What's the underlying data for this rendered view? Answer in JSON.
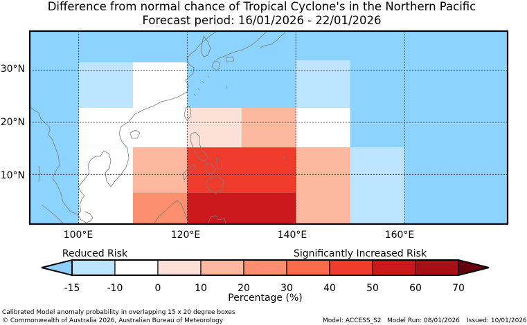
{
  "titles": {
    "line1": "Difference from normal chance of Tropical Cyclone's in the Northern Pacific",
    "line2": "Forecast period: 16/01/2026 - 22/01/2026"
  },
  "axes": {
    "lat_labels": [
      "30°N",
      "20°N",
      "10°N"
    ],
    "lon_labels": [
      "100°E",
      "120°E",
      "140°E",
      "160°E"
    ]
  },
  "map_data": {
    "lon_range": [
      91,
      179
    ],
    "lat_range": [
      0.5,
      37.5
    ],
    "gridlines_lon": [
      100,
      120,
      140,
      160
    ],
    "gridlines_lat": [
      10,
      20,
      30
    ],
    "cells": [
      {
        "lon": [
          100,
          110
        ],
        "lat": [
          22.8,
          31.5
        ],
        "color": "#BEE5FF"
      },
      {
        "lon": [
          110,
          120
        ],
        "lat": [
          22.8,
          31.5
        ],
        "color": "#FFFFFF"
      },
      {
        "lon": [
          100,
          110
        ],
        "lat": [
          15.2,
          22.8
        ],
        "color": "#FFFFFF"
      },
      {
        "lon": [
          110,
          120
        ],
        "lat": [
          15.2,
          22.8
        ],
        "color": "#FFFFFF"
      },
      {
        "lon": [
          120,
          130
        ],
        "lat": [
          15.2,
          22.8
        ],
        "color": "#FDE1D8"
      },
      {
        "lon": [
          130,
          140
        ],
        "lat": [
          15.2,
          22.8
        ],
        "color": "#FCB89E"
      },
      {
        "lon": [
          140,
          150
        ],
        "lat": [
          15.2,
          22.8
        ],
        "color": "#FFFFFF"
      },
      {
        "lon": [
          140,
          150
        ],
        "lat": [
          22.8,
          31.9
        ],
        "color": "#BEE5FF"
      },
      {
        "lon": [
          100,
          110
        ],
        "lat": [
          0.5,
          15.2
        ],
        "color": "#FFFFFF"
      },
      {
        "lon": [
          110,
          120
        ],
        "lat": [
          6.5,
          15.2
        ],
        "color": "#FCB89E"
      },
      {
        "lon": [
          110,
          120
        ],
        "lat": [
          0.5,
          6.5
        ],
        "color": "#FC8E70"
      },
      {
        "lon": [
          120,
          140
        ],
        "lat": [
          6.5,
          15.2
        ],
        "color": "#EF3B2C"
      },
      {
        "lon": [
          120,
          140
        ],
        "lat": [
          0.5,
          6.5
        ],
        "color": "#CB181D"
      },
      {
        "lon": [
          140,
          150
        ],
        "lat": [
          0.5,
          15.2
        ],
        "color": "#FCB89E"
      },
      {
        "lon": [
          150,
          160
        ],
        "lat": [
          0.5,
          15.2
        ],
        "color": "#BEE5FF"
      }
    ]
  },
  "colorbar": {
    "reduced_label": "Reduced Risk",
    "increased_label": "Significantly Increased Risk",
    "tick_labels": [
      "-15",
      "-10",
      "0",
      "10",
      "20",
      "30",
      "40",
      "50",
      "60",
      "70"
    ],
    "colors": [
      "#BEE5FF",
      "#FFFFFF",
      "#FDE1D8",
      "#FCB89E",
      "#FC8E70",
      "#FB6A4A",
      "#EF3B2C",
      "#CB181D",
      "#A50F15"
    ],
    "under_color": "#8CCFFF",
    "over_color": "#67000D",
    "xlabel": "Percentage (%)"
  },
  "colors": {
    "ocean": "#8DD3FF",
    "coast": "#7A7A7A",
    "border": "#000000"
  },
  "footer": {
    "description": "Calibrated Model anomaly probability in overlapping 15 x 20 degree boxes",
    "copyright": "© Commonwealth of Australia 2026, Australian Bureau of Meteorology",
    "model": "Model: ACCESS_S2",
    "model_run": "Model Run: 08/01/2026",
    "issued": "Issued: 10/01/2026"
  }
}
